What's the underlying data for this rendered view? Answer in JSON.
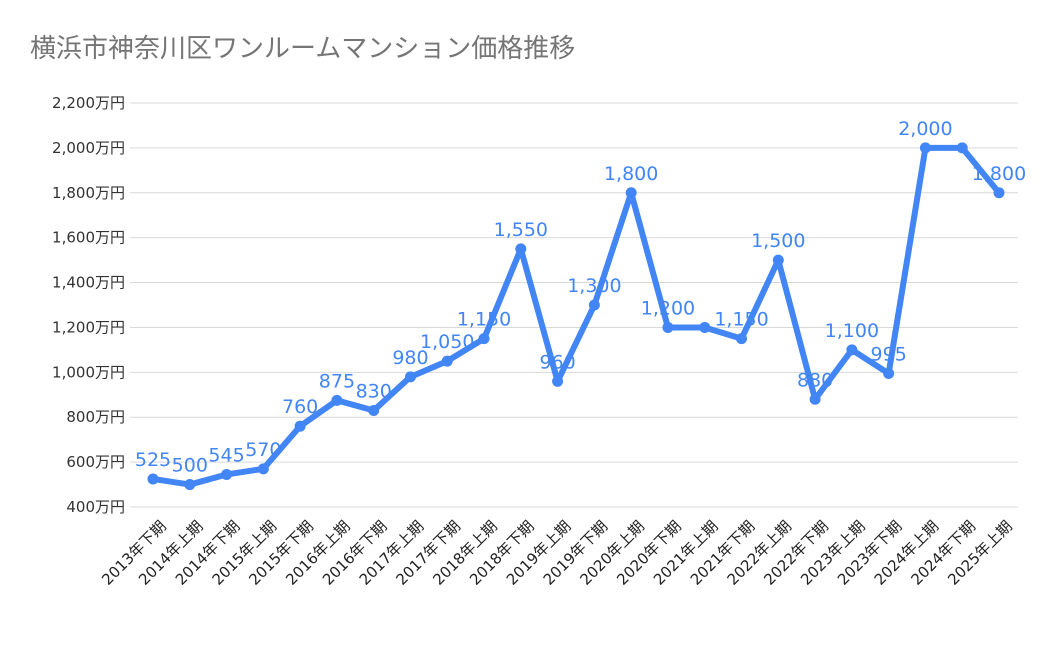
{
  "chart_data": {
    "type": "line",
    "title": "横浜市神奈川区ワンルームマンション価格推移",
    "categories": [
      "2013年下期",
      "2014年上期",
      "2014年下期",
      "2015年上期",
      "2015年下期",
      "2016年上期",
      "2016年下期",
      "2017年上期",
      "2017年下期",
      "2018年上期",
      "2018年下期",
      "2019年上期",
      "2019年下期",
      "2020年上期",
      "2020年下期",
      "2021年上期",
      "2021年下期",
      "2022年上期",
      "2022年下期",
      "2023年上期",
      "2023年下期",
      "2024年上期",
      "2024年下期",
      "2025年上期"
    ],
    "series": [
      {
        "values": [
          525,
          500,
          545,
          570,
          760,
          875,
          830,
          980,
          1050,
          1150,
          1550,
          960,
          1300,
          1800,
          1200,
          1200,
          1150,
          1500,
          880,
          1100,
          995,
          2000,
          2000,
          1800
        ],
        "labels": [
          "525",
          "500",
          "545",
          "570",
          "760",
          "875",
          "830",
          "980",
          "1,050",
          "1,150",
          "1,550",
          "960",
          "1,300",
          "1,800",
          "1,200",
          "",
          "1,150",
          "1,500",
          "880",
          "1,100",
          "995",
          "2,000",
          "",
          "1,800"
        ],
        "color": "#4285f4"
      }
    ],
    "ylim": [
      400,
      2200
    ],
    "yticks": [
      400,
      600,
      800,
      1000,
      1200,
      1400,
      1600,
      1800,
      2000,
      2200
    ],
    "ytick_labels": [
      "400万円",
      "600万円",
      "800万円",
      "1,000万円",
      "1,200万円",
      "1,400万円",
      "1,600万円",
      "1,800万円",
      "2,000万円",
      "2,200万円"
    ],
    "grid": true,
    "legend": "none"
  }
}
